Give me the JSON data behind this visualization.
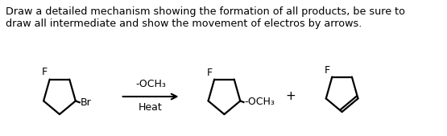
{
  "text_line1": "Draw a detailed mechanism showing the formation of all products, be sure to",
  "text_line2": "draw all intermediate and show the movement of electros by arrows.",
  "label_F1": "F",
  "label_Br": "Br",
  "label_reagent": "-OCH₃",
  "label_heat": "Heat",
  "label_F2": "F",
  "label_OCH3": "-OCH₃",
  "label_plus": "+",
  "label_F3": "F",
  "bg_color": "#ffffff",
  "text_color": "#000000",
  "line_color": "#000000",
  "figsize": [
    5.55,
    1.69
  ],
  "dpi": 100,
  "scale": 24
}
